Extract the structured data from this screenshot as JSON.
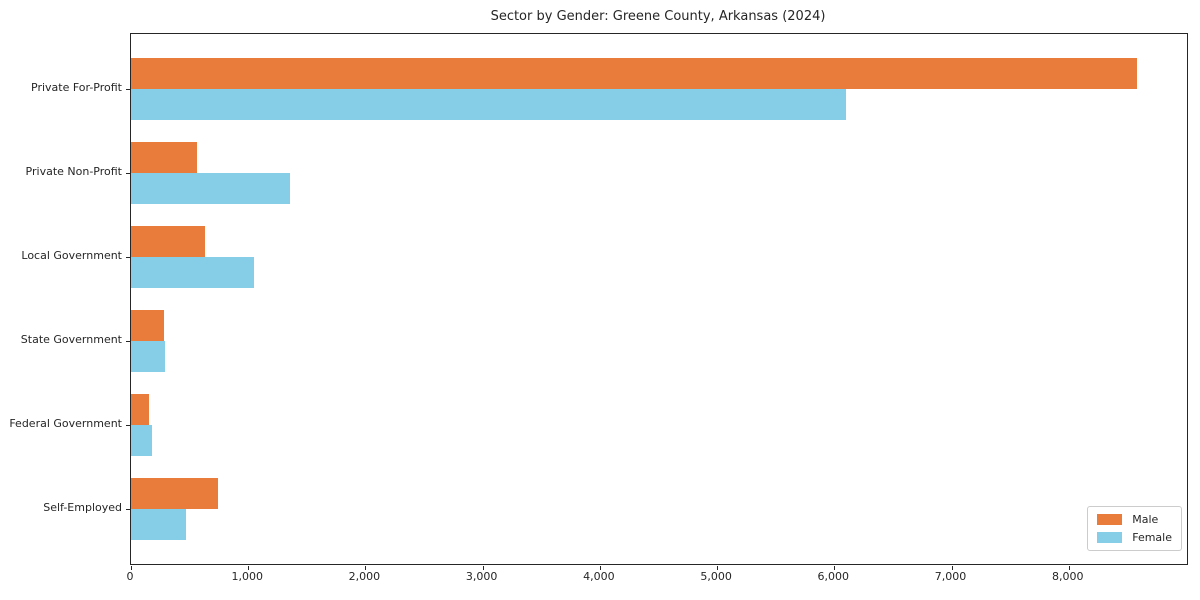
{
  "title": "Sector by Gender: Greene County, Arkansas (2024)",
  "chart_data": {
    "type": "bar",
    "orientation": "horizontal",
    "title": "Sector by Gender: Greene County, Arkansas (2024)",
    "categories": [
      "Private For-Profit",
      "Private Non-Profit",
      "Local Government",
      "State Government",
      "Federal Government",
      "Self-Employed"
    ],
    "series": [
      {
        "name": "Male",
        "color": "#E97C3A",
        "values": [
          8580,
          565,
          630,
          280,
          155,
          740
        ]
      },
      {
        "name": "Female",
        "color": "#86CEE8",
        "values": [
          6100,
          1355,
          1050,
          290,
          180,
          470
        ]
      }
    ],
    "xlabel": "",
    "ylabel": "",
    "xlim": [
      0,
      9009
    ],
    "xticks": [
      0,
      1000,
      2000,
      3000,
      4000,
      5000,
      6000,
      7000,
      8000
    ],
    "xtick_labels": [
      "0",
      "1,000",
      "2,000",
      "3,000",
      "4,000",
      "5,000",
      "6,000",
      "7,000",
      "8,000"
    ],
    "grid": false,
    "legend": {
      "position": "lower-right",
      "entries": [
        "Male",
        "Female"
      ]
    }
  }
}
